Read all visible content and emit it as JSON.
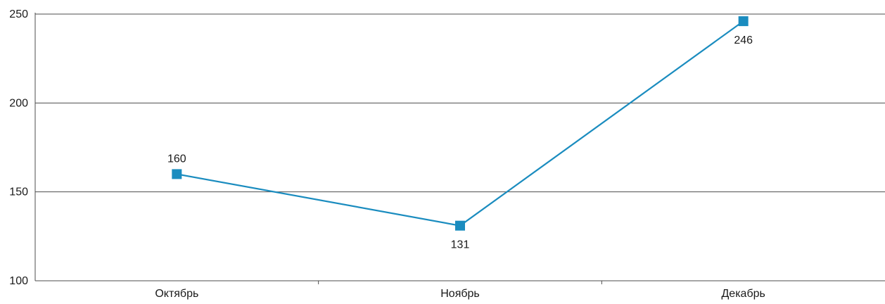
{
  "colors": {
    "series": "#1a8cbf",
    "grid": "#4d4d4d",
    "axis": "#4d4d4d",
    "text": "#1a1a1a"
  },
  "chart_data": {
    "type": "line",
    "title": "",
    "xlabel": "",
    "ylabel": "",
    "categories": [
      "Октябрь",
      "Ноябрь",
      "Декабрь"
    ],
    "series": [
      {
        "values": [
          160,
          131,
          246
        ],
        "color": "#1a8cbf",
        "marker": "square",
        "data_labels": [
          "160",
          "131",
          "246"
        ]
      }
    ],
    "ylim": [
      100,
      250
    ],
    "yticks": [
      100,
      150,
      200,
      250
    ],
    "ytick_labels": [
      "100",
      "150",
      "200",
      "250"
    ],
    "grid": true,
    "legend": "none"
  }
}
